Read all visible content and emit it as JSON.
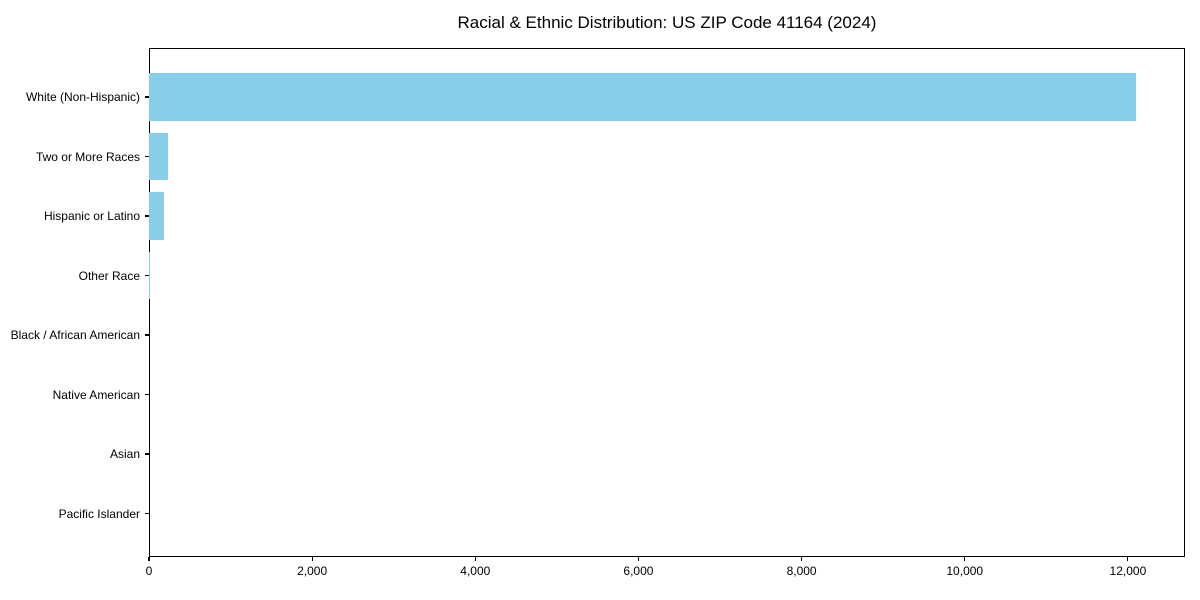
{
  "figure": {
    "title": "Racial & Ethnic Distribution: US ZIP Code 41164 (2024)"
  },
  "chart_data": {
    "type": "bar",
    "orientation": "horizontal",
    "title": "Racial & Ethnic Distribution: US ZIP Code 41164 (2024)",
    "categories": [
      "White (Non-Hispanic)",
      "Two or More Races",
      "Hispanic or Latino",
      "Other Race",
      "Black / African American",
      "Native American",
      "Asian",
      "Pacific Islander"
    ],
    "values": [
      12100,
      230,
      190,
      15,
      0,
      0,
      0,
      0
    ],
    "xlabel": "",
    "ylabel": "",
    "xlim": [
      0,
      12700
    ],
    "xticks": [
      {
        "value": 0,
        "label": "0"
      },
      {
        "value": 2000,
        "label": "2,000"
      },
      {
        "value": 4000,
        "label": "4,000"
      },
      {
        "value": 6000,
        "label": "6,000"
      },
      {
        "value": 8000,
        "label": "8,000"
      },
      {
        "value": 10000,
        "label": "10,000"
      },
      {
        "value": 12000,
        "label": "12,000"
      }
    ],
    "bar_color": "#87CEEB",
    "background_color": "#ffffff",
    "grid": false,
    "legend": null
  }
}
